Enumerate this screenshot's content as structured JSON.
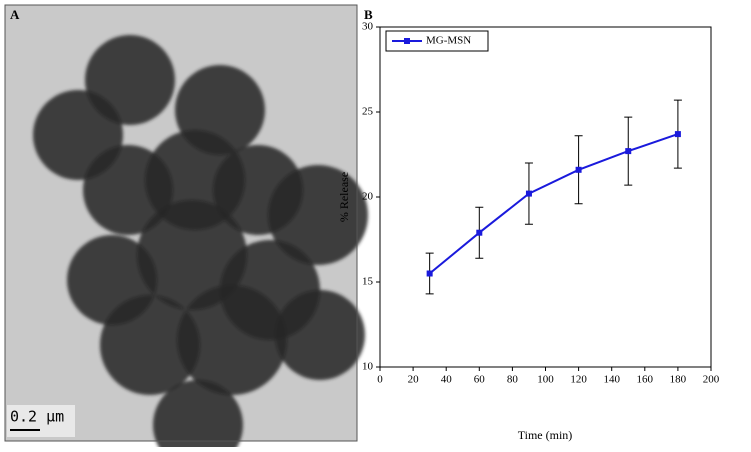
{
  "panel_a": {
    "label": "A",
    "scale_bar": "0.2 µm"
  },
  "chart_data": {
    "type": "line",
    "panel_label": "B",
    "x_label": "Time (min)",
    "y_label": "% Release",
    "x": [
      30,
      60,
      90,
      120,
      150,
      180
    ],
    "series": [
      {
        "name": "MG-MSN",
        "color": "#1a1adc",
        "values": [
          15.5,
          17.9,
          20.2,
          21.6,
          22.7,
          23.7
        ],
        "errors": [
          1.2,
          1.5,
          1.8,
          2.0,
          2.0,
          2.0
        ]
      }
    ],
    "xlim": [
      0,
      200
    ],
    "xticks": [
      0,
      20,
      40,
      60,
      80,
      100,
      120,
      140,
      160,
      180,
      200
    ],
    "ylim": [
      10,
      30
    ],
    "yticks": [
      10,
      15,
      20,
      25,
      30
    ],
    "legend": "upper-left",
    "grid": false
  }
}
